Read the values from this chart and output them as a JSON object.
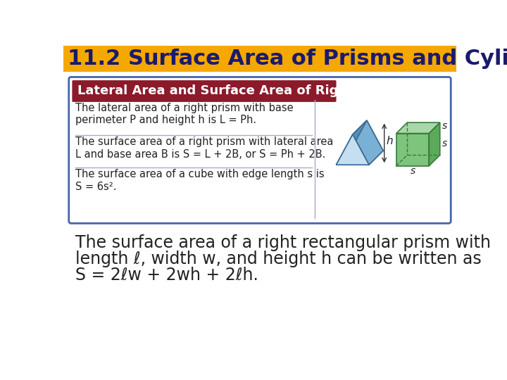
{
  "title_number": "11.2",
  "title_text": " Surface Area of Prisms and Cylinders",
  "title_bg_color": "#F5A800",
  "title_text_color": "#1a1a6e",
  "title_fontsize": 22,
  "box_border_color": "#4466aa",
  "box_bg_color": "#ffffff",
  "theorem_header": "Lateral Area and Surface Area of Right Prisms",
  "theorem_header_bg": "#8B1A2A",
  "theorem_header_text_color": "#ffffff",
  "row1_text": "The lateral area of a right prism with base\nperimeter P and height h is L = Ph.",
  "row2_text": "The surface area of a right prism with lateral area\nL and base area B is S = L + 2B, or S = Ph + 2B.",
  "row3_text": "The surface area of a cube with edge length s is\nS = 6s².",
  "body_text_line1": "The surface area of a right rectangular prism with",
  "body_text_line2": "length ℓ, width w, and height h can be written as",
  "body_text_line3": "S = 2ℓw + 2wh + 2ℓh.",
  "body_fontsize": 17,
  "bg_color": "#ffffff",
  "header_fontsize": 13,
  "row_fontsize": 10.5
}
